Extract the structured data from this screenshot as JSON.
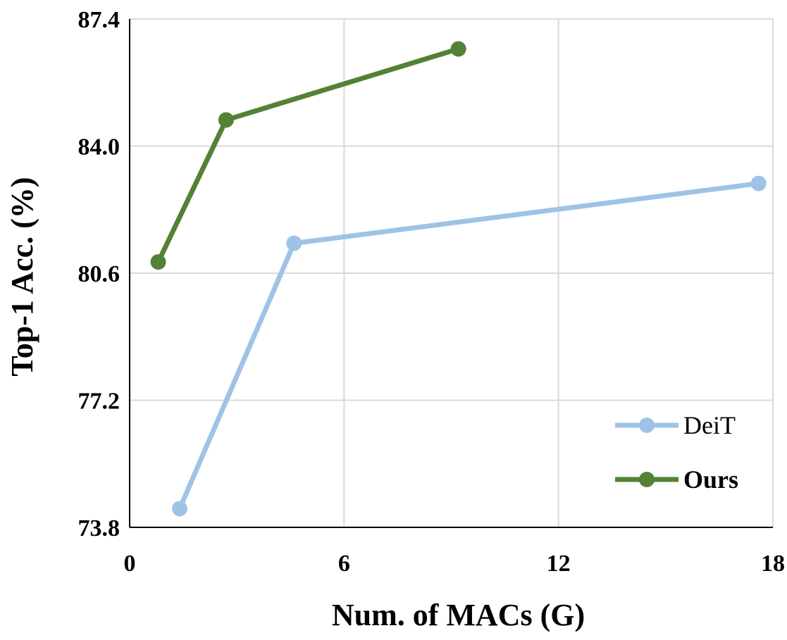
{
  "chart_data": {
    "type": "line",
    "title": "",
    "xlabel": "Num. of MACs (G)",
    "ylabel": "Top-1 Acc. (%)",
    "xlim": [
      0,
      18
    ],
    "ylim": [
      73.8,
      87.4
    ],
    "xticks": [
      0,
      6,
      12,
      18
    ],
    "yticks": [
      73.8,
      77.2,
      80.6,
      84.0,
      87.4
    ],
    "xtick_labels": [
      "0",
      "6",
      "12",
      "18"
    ],
    "ytick_labels": [
      "73.8",
      "77.2",
      "80.6",
      "84.0",
      "87.4"
    ],
    "grid": true,
    "legend_position": "bottom-right",
    "series": [
      {
        "name": "DeiT",
        "color": "#9fc3e7",
        "bold_label": false,
        "x": [
          1.4,
          4.6,
          17.6
        ],
        "y": [
          74.3,
          81.4,
          83.0
        ]
      },
      {
        "name": "Ours",
        "color": "#538135",
        "bold_label": true,
        "x": [
          0.8,
          2.7,
          9.2
        ],
        "y": [
          80.9,
          84.7,
          86.6
        ]
      }
    ]
  }
}
